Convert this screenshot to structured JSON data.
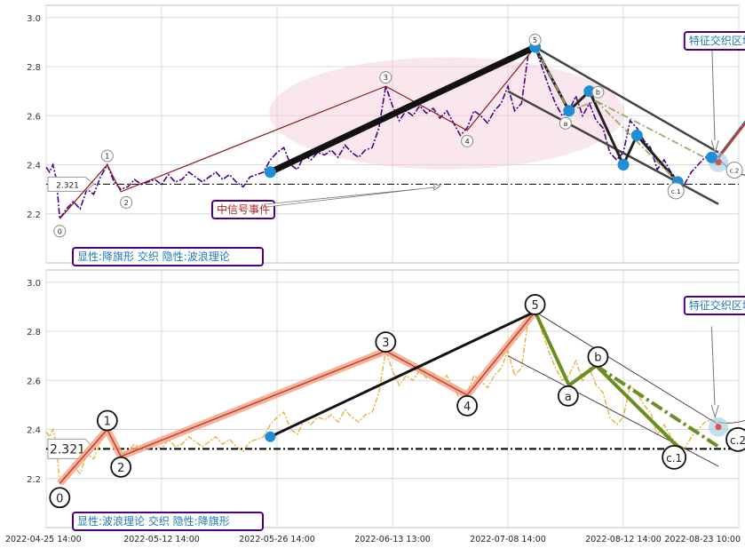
{
  "chart_data": [
    {
      "type": "line",
      "panel": "top",
      "ylim": [
        2.0,
        3.05
      ],
      "yticks": [
        "2.2",
        "2.4",
        "2.6",
        "2.8",
        "3.0"
      ],
      "ytick_values": [
        2.2,
        2.4,
        2.6,
        2.8,
        3.0
      ],
      "grid": true,
      "price_series_color": "#4b0082",
      "price": [
        [
          0,
          2.39
        ],
        [
          1,
          2.37
        ],
        [
          2,
          2.4
        ],
        [
          3,
          2.34
        ],
        [
          4,
          2.18
        ],
        [
          6,
          2.22
        ],
        [
          8,
          2.25
        ],
        [
          10,
          2.22
        ],
        [
          12,
          2.3
        ],
        [
          14,
          2.28
        ],
        [
          16,
          2.35
        ],
        [
          18,
          2.4
        ],
        [
          20,
          2.33
        ],
        [
          22,
          2.3
        ],
        [
          24,
          2.31
        ],
        [
          26,
          2.34
        ],
        [
          28,
          2.32
        ],
        [
          30,
          2.33
        ],
        [
          32,
          2.34
        ],
        [
          34,
          2.32
        ],
        [
          36,
          2.36
        ],
        [
          38,
          2.33
        ],
        [
          40,
          2.34
        ],
        [
          42,
          2.37
        ],
        [
          44,
          2.35
        ],
        [
          46,
          2.33
        ],
        [
          48,
          2.35
        ],
        [
          50,
          2.37
        ],
        [
          52,
          2.34
        ],
        [
          54,
          2.36
        ],
        [
          56,
          2.33
        ],
        [
          58,
          2.31
        ],
        [
          60,
          2.35
        ],
        [
          62,
          2.36
        ],
        [
          64,
          2.37
        ],
        [
          66,
          2.42
        ],
        [
          68,
          2.45
        ],
        [
          70,
          2.47
        ],
        [
          72,
          2.4
        ],
        [
          74,
          2.38
        ],
        [
          76,
          2.44
        ],
        [
          78,
          2.42
        ],
        [
          80,
          2.45
        ],
        [
          82,
          2.44
        ],
        [
          84,
          2.46
        ],
        [
          86,
          2.43
        ],
        [
          88,
          2.48
        ],
        [
          90,
          2.45
        ],
        [
          92,
          2.43
        ],
        [
          94,
          2.46
        ],
        [
          96,
          2.47
        ],
        [
          98,
          2.55
        ],
        [
          100,
          2.72
        ],
        [
          102,
          2.64
        ],
        [
          104,
          2.58
        ],
        [
          106,
          2.62
        ],
        [
          108,
          2.6
        ],
        [
          110,
          2.64
        ],
        [
          112,
          2.61
        ],
        [
          114,
          2.63
        ],
        [
          116,
          2.59
        ],
        [
          118,
          2.62
        ],
        [
          120,
          2.57
        ],
        [
          122,
          2.52
        ],
        [
          124,
          2.55
        ],
        [
          126,
          2.62
        ],
        [
          128,
          2.6
        ],
        [
          130,
          2.57
        ],
        [
          132,
          2.62
        ],
        [
          134,
          2.65
        ],
        [
          136,
          2.72
        ],
        [
          138,
          2.62
        ],
        [
          140,
          2.65
        ],
        [
          142,
          2.85
        ],
        [
          144,
          2.88
        ],
        [
          146,
          2.8
        ],
        [
          148,
          2.72
        ],
        [
          150,
          2.65
        ],
        [
          152,
          2.6
        ],
        [
          154,
          2.62
        ],
        [
          156,
          2.68
        ],
        [
          158,
          2.6
        ],
        [
          160,
          2.65
        ],
        [
          162,
          2.58
        ],
        [
          164,
          2.55
        ],
        [
          166,
          2.45
        ],
        [
          168,
          2.42
        ],
        [
          170,
          2.45
        ],
        [
          172,
          2.58
        ],
        [
          174,
          2.55
        ],
        [
          176,
          2.5
        ],
        [
          178,
          2.47
        ],
        [
          180,
          2.38
        ],
        [
          182,
          2.42
        ],
        [
          184,
          2.37
        ],
        [
          186,
          2.34
        ],
        [
          188,
          2.32
        ],
        [
          190,
          2.37
        ],
        [
          192,
          2.4
        ],
        [
          194,
          2.43
        ],
        [
          196,
          2.44
        ],
        [
          198,
          2.43
        ]
      ],
      "wave_points": [
        {
          "label": "0",
          "t": 4,
          "v": 2.18
        },
        {
          "label": "1",
          "t": 18,
          "v": 2.4
        },
        {
          "label": "2",
          "t": 22,
          "v": 2.29
        },
        {
          "label": "3",
          "t": 100,
          "v": 2.72
        },
        {
          "label": "4",
          "t": 124,
          "v": 2.54
        },
        {
          "label": "5",
          "t": 144,
          "v": 2.88
        },
        {
          "label": "a",
          "t": 154,
          "v": 2.62
        },
        {
          "label": "b",
          "t": 162,
          "v": 2.66
        },
        {
          "label": "c.1",
          "t": 186,
          "v": 2.33
        },
        {
          "label": "c.2",
          "t": 198,
          "v": 2.4
        }
      ],
      "blue_dots": [
        {
          "t": 66,
          "v": 2.37
        },
        {
          "t": 144,
          "v": 2.88
        },
        {
          "t": 154,
          "v": 2.62
        },
        {
          "t": 160,
          "v": 2.7
        },
        {
          "t": 170,
          "v": 2.4
        },
        {
          "t": 174,
          "v": 2.52
        },
        {
          "t": 186,
          "v": 2.33
        },
        {
          "t": 196,
          "v": 2.43
        }
      ],
      "bear_flag": {
        "upper_line": [
          [
            144,
            2.88
          ],
          [
            198,
            2.45
          ]
        ],
        "lower_line": [
          [
            136,
            2.7
          ],
          [
            198,
            2.24
          ]
        ]
      },
      "forecast_line": {
        "from": [
          198,
          2.43
        ],
        "to": [
          228,
          2.97
        ]
      },
      "reference_value": 2.321,
      "reference_label": "2.321",
      "annotations": {
        "feature_zone": "特征交织区域",
        "mid_signal": "中信号事件",
        "legend_box": "显性:降旗形 交织 隐性:波浪理论"
      },
      "colors": {
        "wave_line": "#8b1a1a",
        "thick_line": "#111111",
        "channel": "#444444",
        "dot": "#1e8fd6",
        "ellipse": "#f3c9d6",
        "label_text": "#1f78b4",
        "label_border": "#4b0082",
        "event_text": "#b22222"
      }
    },
    {
      "type": "line",
      "panel": "bottom",
      "ylim": [
        2.0,
        3.05
      ],
      "yticks": [
        "2.2",
        "2.4",
        "2.6",
        "2.8",
        "3.0"
      ],
      "ytick_values": [
        2.2,
        2.4,
        2.6,
        2.8,
        3.0
      ],
      "grid": true,
      "price_series_color": "#e8b23a",
      "xticks": [
        "2022-04-25 14:00",
        "2022-05-12 14:00",
        "2022-05-26 14:00",
        "2022-06-13 13:00",
        "2022-07-08 14:00",
        "2022-08-12 14:00",
        "2022-08-23 10:00"
      ],
      "xtick_positions": [
        0,
        34,
        68,
        102,
        136,
        170,
        204
      ],
      "wave_points": [
        {
          "label": "0",
          "t": 4,
          "v": 2.18
        },
        {
          "label": "1",
          "t": 18,
          "v": 2.4
        },
        {
          "label": "2",
          "t": 22,
          "v": 2.29
        },
        {
          "label": "3",
          "t": 100,
          "v": 2.72
        },
        {
          "label": "4",
          "t": 124,
          "v": 2.54
        },
        {
          "label": "5",
          "t": 144,
          "v": 2.88
        },
        {
          "label": "a",
          "t": 154,
          "v": 2.58
        },
        {
          "label": "b",
          "t": 162,
          "v": 2.66
        },
        {
          "label": "c.1",
          "t": 186,
          "v": 2.33
        },
        {
          "label": "c.2",
          "t": 198,
          "v": 2.33
        }
      ],
      "blue_dots": [
        {
          "t": 66,
          "v": 2.37
        }
      ],
      "bear_flag": {
        "upper_line": [
          [
            144,
            2.88
          ],
          [
            198,
            2.42
          ]
        ],
        "lower_line": [
          [
            136,
            2.7
          ],
          [
            198,
            2.25
          ]
        ]
      },
      "reference_value": 2.321,
      "reference_label": "2.321",
      "annotations": {
        "feature_zone": "特征交织区域",
        "legend_box": "显性:波浪理论 交织 隐性:降旗形"
      },
      "colors": {
        "wave_line": "#e8735a",
        "wave_halo": "#f4a58c",
        "thick_line": "#111111",
        "green_line": "#6b8e23",
        "channel": "#444444",
        "dot": "#1e8fd6",
        "label_text": "#1f78b4",
        "label_border": "#4b0082"
      }
    }
  ]
}
